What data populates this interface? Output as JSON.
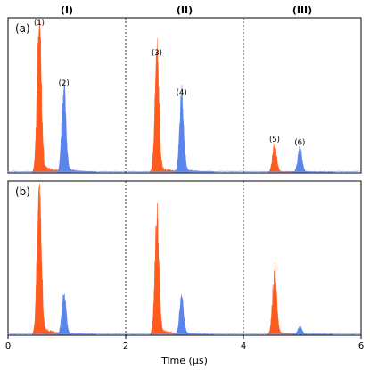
{
  "chart_data": {
    "type": "area",
    "xlabel": "Time (μs)",
    "xlim": [
      0,
      6
    ],
    "ylim": [
      0,
      1
    ],
    "x_ticks": [
      0,
      2,
      4,
      6
    ],
    "x_tick_labels": [
      "0",
      "2",
      "4",
      "6"
    ],
    "dividers_x": [
      2,
      4
    ],
    "sections": [
      {
        "label": "(I)",
        "x": 1
      },
      {
        "label": "(II)",
        "x": 3
      },
      {
        "label": "(III)",
        "x": 5
      }
    ],
    "colors": {
      "orange": "#ff5b1f",
      "blue": "#5b85ea"
    },
    "panels": [
      {
        "label": "(a)",
        "peaks": [
          {
            "label": "(1)",
            "center": 0.53,
            "height": 0.94,
            "color": "orange"
          },
          {
            "label": "(2)",
            "center": 0.95,
            "height": 0.54,
            "color": "blue"
          },
          {
            "label": "(3)",
            "center": 2.53,
            "height": 0.74,
            "color": "orange"
          },
          {
            "label": "(4)",
            "center": 2.95,
            "height": 0.48,
            "color": "blue"
          },
          {
            "label": "(5)",
            "center": 4.53,
            "height": 0.17,
            "color": "orange"
          },
          {
            "label": "(6)",
            "center": 4.96,
            "height": 0.15,
            "color": "blue"
          }
        ]
      },
      {
        "label": "(b)",
        "peaks": [
          {
            "label": "",
            "center": 0.53,
            "height": 0.98,
            "color": "orange"
          },
          {
            "label": "",
            "center": 0.95,
            "height": 0.26,
            "color": "blue"
          },
          {
            "label": "",
            "center": 2.53,
            "height": 0.74,
            "color": "orange"
          },
          {
            "label": "",
            "center": 2.95,
            "height": 0.24,
            "color": "blue"
          },
          {
            "label": "",
            "center": 4.53,
            "height": 0.4,
            "color": "orange"
          },
          {
            "label": "",
            "center": 4.96,
            "height": 0.05,
            "color": "blue"
          }
        ]
      }
    ]
  }
}
